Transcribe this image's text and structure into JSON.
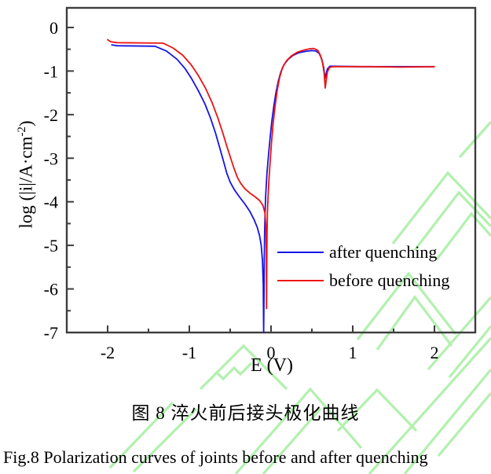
{
  "figure": {
    "caption_zh": "图 8  淬火前后接头极化曲线",
    "caption_en": "Fig.8 Polarization curves of joints before and after quenching"
  },
  "chart_data": {
    "type": "line",
    "title": "",
    "xlabel": "E (V)",
    "ylabel": "log (|i|/A·cm⁻²)",
    "ylabel_render": {
      "pre": "log (|i|/A·cm",
      "sup": "-2",
      "post": ")"
    },
    "xlim": [
      -2.5,
      2.5
    ],
    "ylim": [
      -7,
      0.45
    ],
    "x_major_ticks": [
      -2,
      -1,
      0,
      1,
      2
    ],
    "x_minor_ticks": [
      -1.5,
      -0.5,
      0.5,
      1.5
    ],
    "y_major_ticks": [
      0,
      -1,
      -2,
      -3,
      -4,
      -5,
      -6,
      -7
    ],
    "y_minor_ticks": [
      -0.5,
      -1.5,
      -2.5,
      -3.5,
      -4.5,
      -5.5,
      -6.5
    ],
    "grid": false,
    "legend_position": "inside lower-right",
    "colors": {
      "axis": "#3d3d3d",
      "text": "#000000",
      "watermark": "#b2f0ae",
      "after_quenching": "#1414e6",
      "before_quenching": "#ee1212"
    },
    "series": [
      {
        "name": "after quenching",
        "color": "#1414e6",
        "points": [
          [
            -1.95,
            -0.4
          ],
          [
            -1.88,
            -0.42
          ],
          [
            -1.42,
            -0.43
          ],
          [
            -1.28,
            -0.54
          ],
          [
            -1.15,
            -0.73
          ],
          [
            -1.05,
            -0.95
          ],
          [
            -0.97,
            -1.18
          ],
          [
            -0.89,
            -1.45
          ],
          [
            -0.81,
            -1.75
          ],
          [
            -0.74,
            -2.08
          ],
          [
            -0.68,
            -2.42
          ],
          [
            -0.63,
            -2.75
          ],
          [
            -0.58,
            -3.08
          ],
          [
            -0.54,
            -3.35
          ],
          [
            -0.5,
            -3.55
          ],
          [
            -0.45,
            -3.72
          ],
          [
            -0.39,
            -3.88
          ],
          [
            -0.32,
            -4.05
          ],
          [
            -0.26,
            -4.22
          ],
          [
            -0.21,
            -4.4
          ],
          [
            -0.17,
            -4.58
          ],
          [
            -0.14,
            -4.78
          ],
          [
            -0.12,
            -5.0
          ],
          [
            -0.105,
            -5.35
          ],
          [
            -0.095,
            -5.9
          ],
          [
            -0.09,
            -7.0
          ],
          [
            -0.086,
            -6.1
          ],
          [
            -0.083,
            -5.35
          ],
          [
            -0.079,
            -4.75
          ],
          [
            -0.073,
            -4.25
          ],
          [
            -0.065,
            -3.85
          ],
          [
            -0.05,
            -3.35
          ],
          [
            -0.03,
            -2.9
          ],
          [
            -0.01,
            -2.5
          ],
          [
            0.01,
            -2.15
          ],
          [
            0.035,
            -1.8
          ],
          [
            0.06,
            -1.5
          ],
          [
            0.09,
            -1.22
          ],
          [
            0.12,
            -1.02
          ],
          [
            0.16,
            -0.85
          ],
          [
            0.21,
            -0.73
          ],
          [
            0.27,
            -0.64
          ],
          [
            0.34,
            -0.58
          ],
          [
            0.42,
            -0.55
          ],
          [
            0.5,
            -0.53
          ],
          [
            0.55,
            -0.54
          ],
          [
            0.59,
            -0.6
          ],
          [
            0.62,
            -0.72
          ],
          [
            0.645,
            -0.92
          ],
          [
            0.66,
            -1.17
          ],
          [
            0.675,
            -1.05
          ],
          [
            0.69,
            -0.95
          ],
          [
            0.72,
            -0.89
          ],
          [
            0.78,
            -0.89
          ],
          [
            1.1,
            -0.9
          ],
          [
            1.5,
            -0.9
          ],
          [
            1.99,
            -0.9
          ]
        ]
      },
      {
        "name": "before quenching",
        "color": "#ee1212",
        "points": [
          [
            -2.0,
            -0.28
          ],
          [
            -1.96,
            -0.33
          ],
          [
            -1.88,
            -0.35
          ],
          [
            -1.32,
            -0.36
          ],
          [
            -1.2,
            -0.47
          ],
          [
            -1.08,
            -0.64
          ],
          [
            -0.98,
            -0.85
          ],
          [
            -0.89,
            -1.1
          ],
          [
            -0.8,
            -1.4
          ],
          [
            -0.72,
            -1.73
          ],
          [
            -0.65,
            -2.08
          ],
          [
            -0.59,
            -2.42
          ],
          [
            -0.54,
            -2.73
          ],
          [
            -0.49,
            -3.02
          ],
          [
            -0.45,
            -3.25
          ],
          [
            -0.41,
            -3.45
          ],
          [
            -0.37,
            -3.58
          ],
          [
            -0.32,
            -3.7
          ],
          [
            -0.26,
            -3.8
          ],
          [
            -0.2,
            -3.88
          ],
          [
            -0.14,
            -3.97
          ],
          [
            -0.1,
            -4.08
          ],
          [
            -0.075,
            -4.25
          ],
          [
            -0.063,
            -4.55
          ],
          [
            -0.058,
            -5.1
          ],
          [
            -0.055,
            -6.45
          ],
          [
            -0.052,
            -5.4
          ],
          [
            -0.049,
            -4.75
          ],
          [
            -0.044,
            -4.25
          ],
          [
            -0.036,
            -3.85
          ],
          [
            -0.024,
            -3.45
          ],
          [
            -0.008,
            -3.0
          ],
          [
            0.008,
            -2.6
          ],
          [
            0.025,
            -2.22
          ],
          [
            0.05,
            -1.8
          ],
          [
            0.075,
            -1.45
          ],
          [
            0.105,
            -1.15
          ],
          [
            0.14,
            -0.92
          ],
          [
            0.19,
            -0.76
          ],
          [
            0.25,
            -0.65
          ],
          [
            0.32,
            -0.57
          ],
          [
            0.4,
            -0.52
          ],
          [
            0.47,
            -0.49
          ],
          [
            0.52,
            -0.48
          ],
          [
            0.57,
            -0.52
          ],
          [
            0.6,
            -0.62
          ],
          [
            0.63,
            -0.8
          ],
          [
            0.65,
            -1.05
          ],
          [
            0.663,
            -1.39
          ],
          [
            0.676,
            -1.2
          ],
          [
            0.69,
            -1.02
          ],
          [
            0.715,
            -0.92
          ],
          [
            0.76,
            -0.9
          ],
          [
            1.2,
            -0.9
          ],
          [
            1.6,
            -0.91
          ],
          [
            2.0,
            -0.9
          ]
        ]
      }
    ]
  }
}
